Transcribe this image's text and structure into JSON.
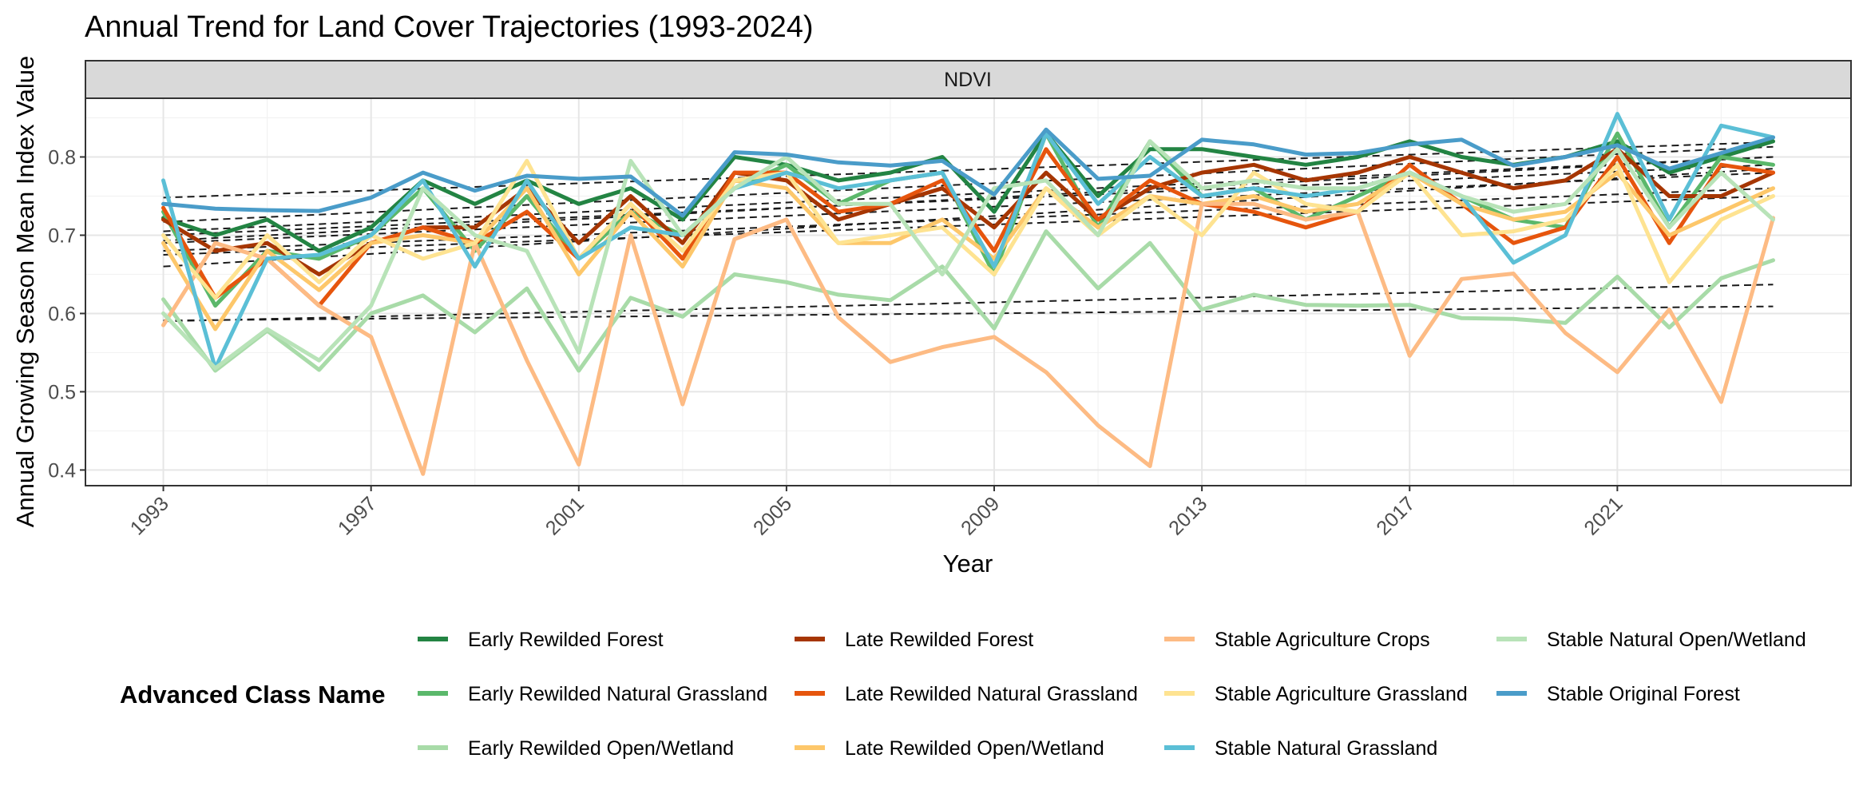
{
  "chart_data": {
    "type": "line",
    "title": "Annual Trend for Land Cover Trajectories (1993-2024)",
    "facet": "NDVI",
    "xlabel": "Year",
    "ylabel": "Annual Growing Season Mean Index Value",
    "xlim": [
      1991.5,
      2025.5
    ],
    "ylim": [
      0.38,
      0.875
    ],
    "x_ticks": [
      1993,
      1997,
      2001,
      2005,
      2009,
      2013,
      2017,
      2021
    ],
    "y_ticks": [
      0.4,
      0.5,
      0.6,
      0.7,
      0.8
    ],
    "grid": true,
    "legend_title": "Advanced Class Name",
    "legend_position": "bottom",
    "trend_line_style": "dashed",
    "x": [
      1993,
      1994,
      1995,
      1996,
      1997,
      1998,
      1999,
      2000,
      2001,
      2002,
      2003,
      2004,
      2005,
      2006,
      2007,
      2008,
      2009,
      2010,
      2011,
      2012,
      2013,
      2014,
      2015,
      2016,
      2017,
      2018,
      2019,
      2020,
      2021,
      2022,
      2023,
      2024
    ],
    "series": [
      {
        "name": "Early Rewilded Forest",
        "color": "#238443",
        "values": [
          0.722,
          0.7,
          0.72,
          0.68,
          0.71,
          0.77,
          0.74,
          0.77,
          0.74,
          0.76,
          0.72,
          0.8,
          0.79,
          0.77,
          0.78,
          0.8,
          0.73,
          0.83,
          0.75,
          0.81,
          0.81,
          0.8,
          0.79,
          0.8,
          0.82,
          0.8,
          0.79,
          0.8,
          0.82,
          0.78,
          0.8,
          0.82
        ],
        "trend": [
          0.717,
          0.813
        ]
      },
      {
        "name": "Early Rewilded Natural Grassland",
        "color": "#5BB86B",
        "values": [
          0.73,
          0.61,
          0.68,
          0.67,
          0.7,
          0.76,
          0.68,
          0.75,
          0.67,
          0.73,
          0.7,
          0.76,
          0.79,
          0.74,
          0.77,
          0.78,
          0.65,
          0.83,
          0.71,
          0.82,
          0.75,
          0.76,
          0.72,
          0.75,
          0.78,
          0.75,
          0.72,
          0.71,
          0.83,
          0.71,
          0.8,
          0.79
        ],
        "trend": [
          0.693,
          0.8
        ]
      },
      {
        "name": "Early Rewilded Open/Wetland",
        "color": "#A8DBA8",
        "values": [
          0.618,
          0.527,
          0.578,
          0.528,
          0.6,
          0.623,
          0.576,
          0.632,
          0.527,
          0.62,
          0.596,
          0.65,
          0.64,
          0.624,
          0.617,
          0.66,
          0.581,
          0.705,
          0.632,
          0.69,
          0.605,
          0.624,
          0.611,
          0.61,
          0.611,
          0.594,
          0.593,
          0.588,
          0.647,
          0.582,
          0.645,
          0.668
        ],
        "trend": [
          0.59,
          0.637
        ]
      },
      {
        "name": "Late Rewilded Forest",
        "color": "#A63603",
        "values": [
          0.72,
          0.68,
          0.69,
          0.65,
          0.69,
          0.71,
          0.71,
          0.76,
          0.69,
          0.75,
          0.69,
          0.78,
          0.77,
          0.72,
          0.74,
          0.76,
          0.71,
          0.78,
          0.72,
          0.76,
          0.78,
          0.79,
          0.77,
          0.78,
          0.8,
          0.78,
          0.76,
          0.77,
          0.81,
          0.75,
          0.75,
          0.78
        ],
        "trend": [
          0.7,
          0.79
        ]
      },
      {
        "name": "Late Rewilded Natural Grassland",
        "color": "#E6550D",
        "values": [
          0.735,
          0.62,
          0.67,
          0.61,
          0.69,
          0.71,
          0.69,
          0.73,
          0.67,
          0.74,
          0.67,
          0.78,
          0.78,
          0.73,
          0.74,
          0.77,
          0.68,
          0.81,
          0.72,
          0.77,
          0.74,
          0.73,
          0.71,
          0.73,
          0.79,
          0.74,
          0.69,
          0.71,
          0.8,
          0.69,
          0.79,
          0.78
        ],
        "trend": [
          0.69,
          0.78
        ]
      },
      {
        "name": "Late Rewilded Open/Wetland",
        "color": "#FDC76A",
        "values": [
          0.69,
          0.58,
          0.68,
          0.63,
          0.69,
          0.7,
          0.69,
          0.76,
          0.65,
          0.73,
          0.66,
          0.77,
          0.76,
          0.69,
          0.69,
          0.72,
          0.67,
          0.76,
          0.71,
          0.75,
          0.74,
          0.75,
          0.73,
          0.74,
          0.78,
          0.74,
          0.72,
          0.73,
          0.78,
          0.7,
          0.73,
          0.76
        ],
        "trend": [
          0.68,
          0.76
        ]
      },
      {
        "name": "Stable Agriculture Crops",
        "color": "#FDBB84",
        "values": [
          0.585,
          0.69,
          0.67,
          0.61,
          0.57,
          0.395,
          0.69,
          0.54,
          0.407,
          0.7,
          0.484,
          0.695,
          0.72,
          0.595,
          0.538,
          0.557,
          0.57,
          0.525,
          0.457,
          0.405,
          0.74,
          0.74,
          0.72,
          0.73,
          0.546,
          0.644,
          0.651,
          0.575,
          0.525,
          0.605,
          0.487,
          0.722
        ],
        "trend": [
          0.591,
          0.609
        ]
      },
      {
        "name": "Stable Agriculture Grassland",
        "color": "#FEE391",
        "values": [
          0.7,
          0.62,
          0.7,
          0.64,
          0.7,
          0.67,
          0.69,
          0.795,
          0.67,
          0.74,
          0.68,
          0.77,
          0.78,
          0.69,
          0.7,
          0.71,
          0.65,
          0.76,
          0.7,
          0.75,
          0.7,
          0.78,
          0.74,
          0.73,
          0.78,
          0.7,
          0.705,
          0.72,
          0.79,
          0.64,
          0.72,
          0.75
        ],
        "trend": [
          0.675,
          0.75
        ]
      },
      {
        "name": "Stable Natural Grassland",
        "color": "#5BBFD6",
        "values": [
          0.77,
          0.53,
          0.67,
          0.675,
          0.7,
          0.77,
          0.66,
          0.77,
          0.67,
          0.71,
          0.7,
          0.76,
          0.78,
          0.76,
          0.77,
          0.78,
          0.66,
          0.83,
          0.74,
          0.8,
          0.75,
          0.76,
          0.75,
          0.76,
          0.78,
          0.75,
          0.665,
          0.7,
          0.855,
          0.72,
          0.84,
          0.825
        ],
        "trend": [
          0.705,
          0.8
        ]
      },
      {
        "name": "Stable Natural Open/Wetland",
        "color": "#B8E3B8",
        "values": [
          0.6,
          0.53,
          0.58,
          0.54,
          0.61,
          0.76,
          0.7,
          0.68,
          0.55,
          0.795,
          0.7,
          0.76,
          0.8,
          0.74,
          0.74,
          0.65,
          0.76,
          0.77,
          0.7,
          0.82,
          0.76,
          0.77,
          0.76,
          0.76,
          0.78,
          0.75,
          0.73,
          0.74,
          0.81,
          0.71,
          0.78,
          0.72
        ],
        "trend": [
          0.66,
          0.785
        ]
      },
      {
        "name": "Stable Original Forest",
        "color": "#4A9CC9",
        "values": [
          0.74,
          0.734,
          0.732,
          0.731,
          0.748,
          0.78,
          0.757,
          0.776,
          0.772,
          0.775,
          0.725,
          0.806,
          0.803,
          0.793,
          0.789,
          0.795,
          0.752,
          0.835,
          0.772,
          0.776,
          0.822,
          0.816,
          0.803,
          0.805,
          0.816,
          0.822,
          0.789,
          0.8,
          0.815,
          0.785,
          0.805,
          0.825
        ],
        "trend": [
          0.748,
          0.819
        ]
      }
    ]
  }
}
